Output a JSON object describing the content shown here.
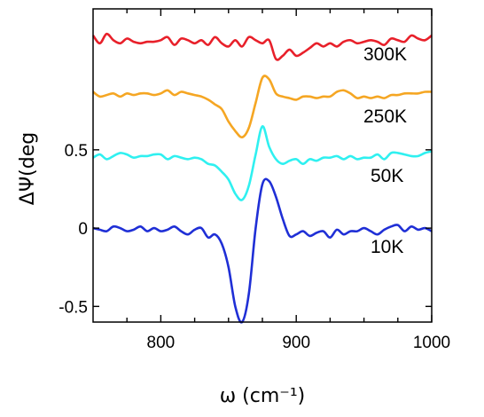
{
  "chart_data": {
    "type": "line",
    "xlabel": "ω (cm⁻¹)",
    "ylabel": "ΔΨ(deg",
    "xlim": [
      750,
      1000
    ],
    "ylim": [
      -0.6,
      1.4
    ],
    "x_ticks": [
      800,
      900,
      1000
    ],
    "x_minor_ticks": [
      775,
      825,
      850,
      875,
      925,
      950,
      975
    ],
    "y_ticks": [
      {
        "value": -0.5,
        "label": "-0.5"
      },
      {
        "value": 0,
        "label": "0"
      },
      {
        "value": 0.5,
        "label": "0.5"
      }
    ],
    "grid": false,
    "x": [
      750,
      755,
      760,
      765,
      770,
      775,
      780,
      785,
      790,
      795,
      800,
      805,
      810,
      815,
      820,
      825,
      830,
      835,
      840,
      845,
      850,
      855,
      860,
      865,
      870,
      875,
      880,
      885,
      890,
      895,
      900,
      905,
      910,
      915,
      920,
      925,
      930,
      935,
      940,
      945,
      950,
      955,
      960,
      965,
      970,
      975,
      980,
      985,
      990,
      995,
      1000
    ],
    "series": [
      {
        "name": "10K",
        "color": "#1f2fd6",
        "values": [
          0,
          -0.01,
          -0.02,
          0.01,
          0,
          -0.02,
          -0.01,
          0.01,
          -0.02,
          0,
          -0.02,
          -0.01,
          0.01,
          -0.02,
          -0.04,
          -0.01,
          0,
          -0.06,
          -0.04,
          -0.1,
          -0.25,
          -0.5,
          -0.6,
          -0.42,
          0,
          0.28,
          0.3,
          0.2,
          0.06,
          -0.05,
          -0.04,
          -0.02,
          -0.05,
          -0.03,
          -0.02,
          -0.06,
          -0.01,
          -0.04,
          -0.02,
          -0.02,
          0,
          -0.02,
          -0.04,
          -0.01,
          0.01,
          0.02,
          -0.02,
          0.01,
          -0.01,
          0,
          -0.02
        ]
      },
      {
        "name": "50K",
        "color": "#2ff0f0",
        "values": [
          0.45,
          0.47,
          0.44,
          0.46,
          0.48,
          0.47,
          0.45,
          0.46,
          0.46,
          0.47,
          0.47,
          0.44,
          0.46,
          0.45,
          0.44,
          0.45,
          0.44,
          0.41,
          0.4,
          0.36,
          0.31,
          0.22,
          0.18,
          0.27,
          0.47,
          0.65,
          0.52,
          0.44,
          0.41,
          0.43,
          0.44,
          0.41,
          0.44,
          0.43,
          0.45,
          0.45,
          0.46,
          0.44,
          0.46,
          0.44,
          0.45,
          0.45,
          0.47,
          0.44,
          0.48,
          0.48,
          0.47,
          0.46,
          0.46,
          0.48,
          0.49
        ]
      },
      {
        "name": "250K",
        "color": "#f5a623",
        "values": [
          0.87,
          0.84,
          0.85,
          0.86,
          0.84,
          0.86,
          0.85,
          0.86,
          0.86,
          0.85,
          0.86,
          0.88,
          0.85,
          0.87,
          0.86,
          0.85,
          0.84,
          0.82,
          0.79,
          0.76,
          0.68,
          0.62,
          0.58,
          0.64,
          0.8,
          0.96,
          0.95,
          0.86,
          0.84,
          0.83,
          0.82,
          0.84,
          0.84,
          0.83,
          0.84,
          0.84,
          0.87,
          0.88,
          0.86,
          0.83,
          0.84,
          0.83,
          0.84,
          0.83,
          0.85,
          0.85,
          0.86,
          0.86,
          0.86,
          0.87,
          0.87
        ]
      },
      {
        "name": "300K",
        "color": "#e8202a",
        "values": [
          1.23,
          1.18,
          1.24,
          1.2,
          1.18,
          1.21,
          1.19,
          1.18,
          1.19,
          1.19,
          1.2,
          1.22,
          1.17,
          1.21,
          1.2,
          1.18,
          1.2,
          1.17,
          1.22,
          1.18,
          1.16,
          1.2,
          1.16,
          1.22,
          1.2,
          1.18,
          1.2,
          1.08,
          1.1,
          1.14,
          1.1,
          1.12,
          1.15,
          1.18,
          1.16,
          1.18,
          1.16,
          1.19,
          1.2,
          1.18,
          1.19,
          1.2,
          1.19,
          1.17,
          1.21,
          1.2,
          1.19,
          1.23,
          1.21,
          1.2,
          1.23
        ]
      }
    ]
  },
  "series_labels": [
    {
      "text": "300K",
      "color": "#e8202a"
    },
    {
      "text": "250K",
      "color": "#f5a623"
    },
    {
      "text": "50K",
      "color": "#2ff0f0"
    },
    {
      "text": "10K",
      "color": "#1f2fd6"
    }
  ]
}
